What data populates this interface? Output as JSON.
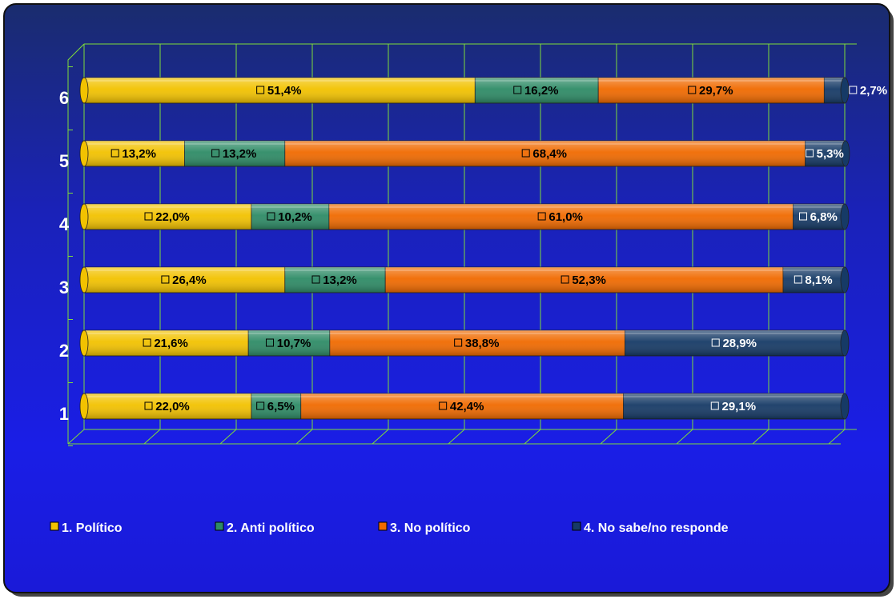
{
  "chart_data": {
    "type": "bar",
    "orientation": "horizontal",
    "stacked": true,
    "percent_stacked": true,
    "categories": [
      "1",
      "2",
      "3",
      "4",
      "5",
      "6"
    ],
    "series": [
      {
        "name": "1. Político",
        "color": "#f2c200",
        "labels": [
          "22,0%",
          "21,6%",
          "26,4%",
          "22,0%",
          "13,2%",
          "51,4%"
        ],
        "values": [
          22.0,
          21.6,
          26.4,
          22.0,
          13.2,
          51.4
        ]
      },
      {
        "name": "2. Anti político",
        "color": "#2e8b66",
        "labels": [
          "6,5%",
          "10,7%",
          "13,2%",
          "10,2%",
          "13,2%",
          "16,2%"
        ],
        "values": [
          6.5,
          10.7,
          13.2,
          10.2,
          13.2,
          16.2
        ]
      },
      {
        "name": "3. No político",
        "color": "#f06a00",
        "labels": [
          "42,4%",
          "38,8%",
          "52,3%",
          "61,0%",
          "68,4%",
          "29,7%"
        ],
        "values": [
          42.4,
          38.8,
          52.3,
          61.0,
          68.4,
          29.7
        ]
      },
      {
        "name": "4. No sabe/no responde",
        "color": "#163a66",
        "labels": [
          "29,1%",
          "28,9%",
          "8,1%",
          "6,8%",
          "5,3%",
          "2,7%"
        ],
        "values": [
          29.1,
          28.9,
          8.1,
          6.8,
          5.3,
          2.7
        ]
      }
    ],
    "xlim": [
      0,
      100
    ],
    "grid": true,
    "legend_position": "bottom"
  }
}
